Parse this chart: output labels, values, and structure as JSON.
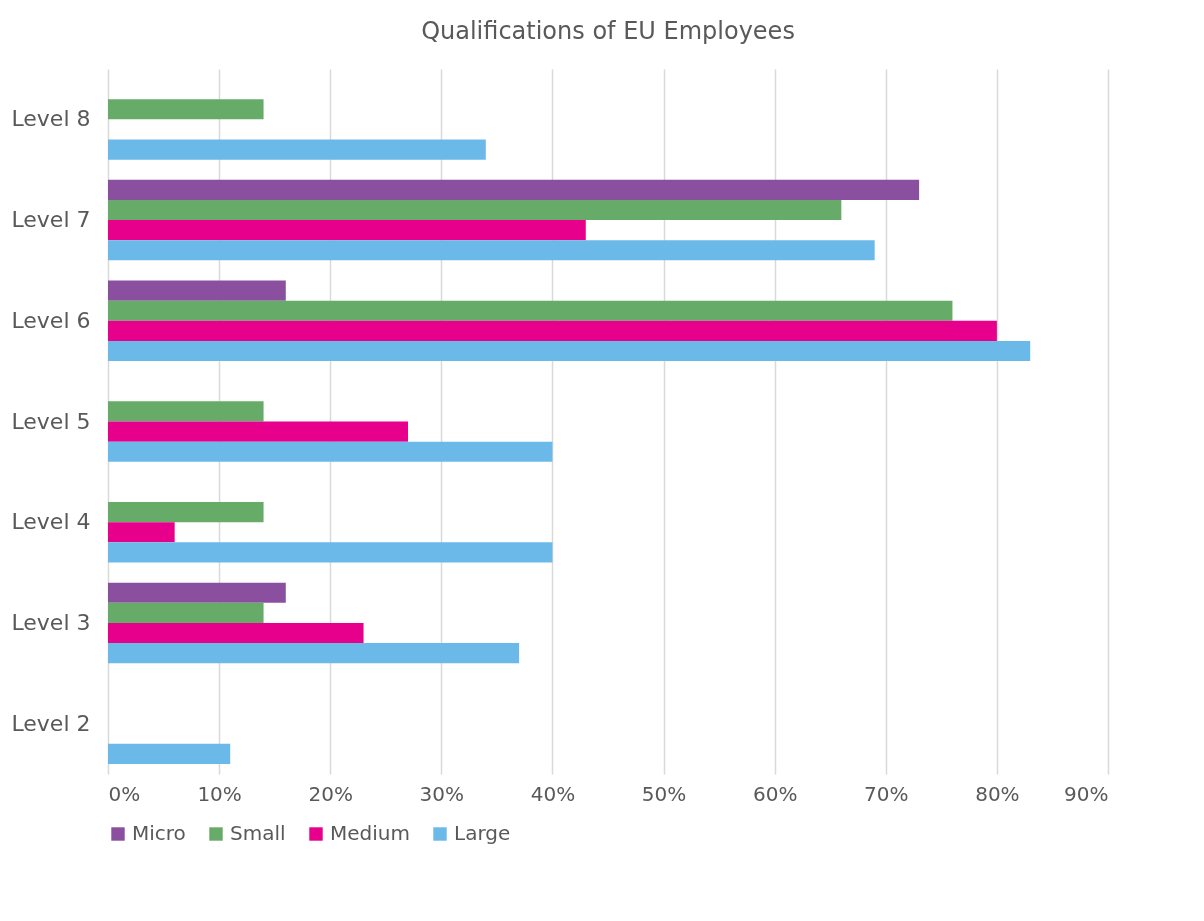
{
  "chart_data": {
    "type": "bar",
    "orientation": "horizontal",
    "title": "Qualifications of EU Employees",
    "categories": [
      "Level 8",
      "Level 7",
      "Level 6",
      "Level 5",
      "Level 4",
      "Level 3",
      "Level 2"
    ],
    "series": [
      {
        "name": "Micro",
        "color": "#8a4f9e",
        "values": [
          null,
          73,
          16,
          null,
          null,
          16,
          null
        ]
      },
      {
        "name": "Small",
        "color": "#66ab67",
        "values": [
          14,
          66,
          76,
          14,
          14,
          14,
          null
        ]
      },
      {
        "name": "Medium",
        "color": "#e6008c",
        "values": [
          null,
          43,
          80,
          27,
          6,
          23,
          null
        ]
      },
      {
        "name": "Large",
        "color": "#6bb9e8",
        "values": [
          34,
          69,
          83,
          40,
          40,
          37,
          11
        ]
      }
    ],
    "xlim": [
      0,
      90
    ],
    "xticks": [
      {
        "value": 0,
        "label": "0%"
      },
      {
        "value": 10,
        "label": "10%"
      },
      {
        "value": 20,
        "label": "20%"
      },
      {
        "value": 30,
        "label": "30%"
      },
      {
        "value": 40,
        "label": "40%"
      },
      {
        "value": 50,
        "label": "50%"
      },
      {
        "value": 60,
        "label": "60%"
      },
      {
        "value": 70,
        "label": "70%"
      },
      {
        "value": 80,
        "label": "80%"
      },
      {
        "value": 90,
        "label": "90%"
      }
    ],
    "grid": "x",
    "legend": "bottom"
  }
}
